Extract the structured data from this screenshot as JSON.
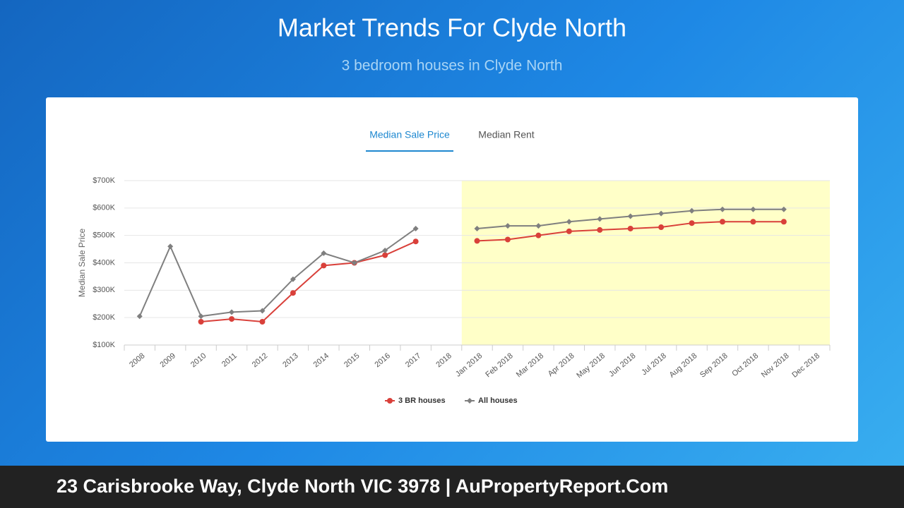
{
  "header": {
    "title": "Market Trends For Clyde North",
    "subtitle": "3 bedroom houses in Clyde North"
  },
  "tabs": [
    {
      "label": "Median Sale Price",
      "active": true
    },
    {
      "label": "Median Rent",
      "active": false
    }
  ],
  "chart_data": {
    "type": "line",
    "y_label": "Median Sale Price",
    "categories": [
      "2008",
      "2009",
      "2010",
      "2011",
      "2012",
      "2013",
      "2014",
      "2015",
      "2016",
      "2017",
      "2018",
      "Jan 2018",
      "Feb 2018",
      "Mar 2018",
      "Apr 2018",
      "May 2018",
      "Jun 2018",
      "Jul 2018",
      "Aug 2018",
      "Sep 2018",
      "Oct 2018",
      "Nov 2018",
      "Dec 2018"
    ],
    "series": [
      {
        "name": "3 BR houses",
        "color": "#d9403a",
        "marker": "circle",
        "values": [
          null,
          null,
          185000,
          195000,
          185000,
          290000,
          390000,
          400000,
          428000,
          478000,
          null,
          480000,
          485000,
          500000,
          515000,
          520000,
          525000,
          530000,
          545000,
          550000,
          550000,
          550000,
          null
        ]
      },
      {
        "name": "All houses",
        "color": "#7f7f7f",
        "marker": "diamond",
        "values": [
          205000,
          460000,
          205000,
          220000,
          225000,
          340000,
          435000,
          400000,
          445000,
          525000,
          null,
          525000,
          535000,
          535000,
          550000,
          560000,
          570000,
          580000,
          590000,
          595000,
          595000,
          595000,
          null
        ]
      }
    ],
    "ylim": [
      100000,
      700000
    ],
    "yticks": [
      {
        "value": 100000,
        "label": "$100K"
      },
      {
        "value": 200000,
        "label": "$200K"
      },
      {
        "value": 300000,
        "label": "$300K"
      },
      {
        "value": 400000,
        "label": "$400K"
      },
      {
        "value": 500000,
        "label": "$500K"
      },
      {
        "value": 600000,
        "label": "$600K"
      },
      {
        "value": 700000,
        "label": "$700K"
      }
    ],
    "grid": true,
    "highlight": {
      "from": "Jan 2018",
      "to": "Dec 2018",
      "color": "#ffffc8"
    },
    "legend": "bottom"
  },
  "footer": {
    "text": "23 Carisbrooke Way, Clyde North VIC 3978 | AuPropertyReport.Com"
  }
}
